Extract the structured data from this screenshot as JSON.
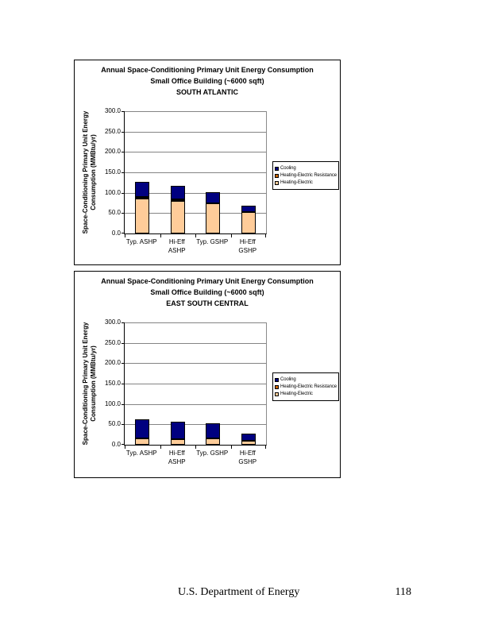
{
  "footer": {
    "text": "U.S. Department of Energy",
    "page_number": "118"
  },
  "colors": {
    "cooling": "#000080",
    "heating_electric_resistance": "#CC6600",
    "heating_electric": "#FFCC99",
    "gridline": "#848484",
    "axis": "#000000"
  },
  "chart_data": [
    {
      "type": "bar",
      "stacked": true,
      "title_line1": "Annual Space-Conditioning Primary Unit Energy Consumption",
      "title_line2": "Small Office Building (~6000 sqft)",
      "title_line3": "SOUTH ATLANTIC",
      "ylabel_lines": [
        "Space-Conditioning Primary Unit Energy",
        "Consumption (MMBtu/yr)"
      ],
      "categories": [
        [
          "Typ. ASHP"
        ],
        [
          "Hi-Eff",
          "ASHP"
        ],
        [
          "Typ. GSHP"
        ],
        [
          "Hi-Eff",
          "GSHP"
        ]
      ],
      "ylim": [
        0,
        300
      ],
      "ytick_step": 50,
      "ytick_labels": [
        "300.0",
        "250.0",
        "200.0",
        "150.0",
        "100.0",
        "50.0",
        "0.0"
      ],
      "grid": true,
      "legend_position": "right",
      "legend_items": [
        {
          "label": "Cooling",
          "color_key": "cooling"
        },
        {
          "label": "Heating-Electric Resistance",
          "color_key": "heating_electric_resistance"
        },
        {
          "label": "Heating-Electric",
          "color_key": "heating_electric"
        }
      ],
      "series": [
        {
          "name": "Heating-Electric",
          "color_key": "heating_electric",
          "values": [
            85,
            79,
            75,
            53
          ]
        },
        {
          "name": "Heating-Electric Resistance",
          "color_key": "heating_electric_resistance",
          "values": [
            5,
            4,
            0,
            0
          ]
        },
        {
          "name": "Cooling",
          "color_key": "cooling",
          "values": [
            37,
            33,
            27,
            15
          ]
        }
      ]
    },
    {
      "type": "bar",
      "stacked": true,
      "title_line1": "Annual Space-Conditioning Primary Unit Energy Consumption",
      "title_line2": "Small Office Building (~6000 sqft)",
      "title_line3": "EAST SOUTH CENTRAL",
      "ylabel_lines": [
        "Space-Conditioning Primary Unit Energy",
        "Consumption (MMBtu/yr)"
      ],
      "categories": [
        [
          "Typ. ASHP"
        ],
        [
          "Hi-Eff",
          "ASHP"
        ],
        [
          "Typ. GSHP"
        ],
        [
          "Hi-Eff",
          "GSHP"
        ]
      ],
      "ylim": [
        0,
        300
      ],
      "ytick_step": 50,
      "ytick_labels": [
        "300.0",
        "250.0",
        "200.0",
        "150.0",
        "100.0",
        "50.0",
        "0.0"
      ],
      "grid": true,
      "legend_position": "right",
      "legend_items": [
        {
          "label": "Cooling",
          "color_key": "cooling"
        },
        {
          "label": "Heating-Electric Resistance",
          "color_key": "heating_electric_resistance"
        },
        {
          "label": "Heating-Electric",
          "color_key": "heating_electric"
        }
      ],
      "series": [
        {
          "name": "Heating-Electric",
          "color_key": "heating_electric",
          "values": [
            15,
            13,
            15,
            10
          ]
        },
        {
          "name": "Heating-Electric Resistance",
          "color_key": "heating_electric_resistance",
          "values": [
            0,
            0,
            0,
            0
          ]
        },
        {
          "name": "Cooling",
          "color_key": "cooling",
          "values": [
            48,
            44,
            37,
            18
          ]
        }
      ]
    }
  ]
}
